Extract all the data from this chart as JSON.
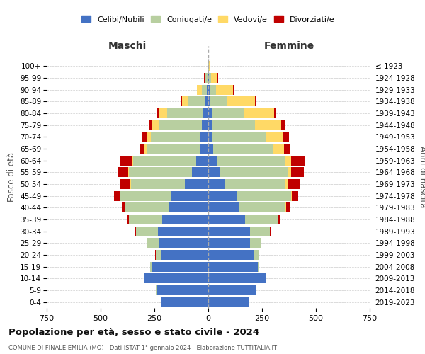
{
  "age_groups": [
    "0-4",
    "5-9",
    "10-14",
    "15-19",
    "20-24",
    "25-29",
    "30-34",
    "35-39",
    "40-44",
    "45-49",
    "50-54",
    "55-59",
    "60-64",
    "65-69",
    "70-74",
    "75-79",
    "80-84",
    "85-89",
    "90-94",
    "95-99",
    "100+"
  ],
  "birth_years": [
    "2019-2023",
    "2014-2018",
    "2009-2013",
    "2004-2008",
    "1999-2003",
    "1994-1998",
    "1989-1993",
    "1984-1988",
    "1979-1983",
    "1974-1978",
    "1969-1973",
    "1964-1968",
    "1959-1963",
    "1954-1958",
    "1949-1953",
    "1944-1948",
    "1939-1943",
    "1934-1938",
    "1929-1933",
    "1924-1928",
    "≤ 1923"
  ],
  "colors": {
    "celibe": "#4472c4",
    "coniugato": "#b8cfa0",
    "vedovo": "#ffd966",
    "divorziato": "#c00000"
  },
  "maschi": {
    "celibe": [
      220,
      240,
      295,
      260,
      220,
      230,
      235,
      215,
      185,
      170,
      110,
      75,
      55,
      35,
      35,
      30,
      25,
      12,
      6,
      4,
      2
    ],
    "coniugato": [
      2,
      3,
      5,
      10,
      25,
      55,
      100,
      155,
      200,
      240,
      250,
      295,
      295,
      250,
      230,
      200,
      165,
      80,
      25,
      8,
      2
    ],
    "vedovo": [
      0,
      0,
      0,
      0,
      0,
      0,
      0,
      0,
      0,
      1,
      2,
      2,
      5,
      10,
      20,
      30,
      40,
      30,
      20,
      5,
      0
    ],
    "divorziato": [
      0,
      0,
      0,
      0,
      1,
      2,
      5,
      8,
      15,
      25,
      50,
      45,
      55,
      25,
      20,
      15,
      8,
      5,
      3,
      2,
      0
    ]
  },
  "femmine": {
    "nubile": [
      190,
      220,
      265,
      230,
      215,
      195,
      195,
      170,
      145,
      130,
      80,
      55,
      40,
      22,
      20,
      18,
      15,
      8,
      5,
      3,
      1
    ],
    "coniugata": [
      1,
      2,
      3,
      8,
      20,
      50,
      90,
      155,
      215,
      255,
      280,
      315,
      320,
      280,
      250,
      200,
      150,
      80,
      30,
      10,
      2
    ],
    "vedova": [
      0,
      0,
      0,
      0,
      0,
      0,
      0,
      1,
      2,
      4,
      8,
      15,
      25,
      50,
      80,
      120,
      140,
      130,
      80,
      30,
      5
    ],
    "divorziata": [
      0,
      0,
      0,
      0,
      1,
      2,
      4,
      8,
      15,
      30,
      60,
      60,
      65,
      25,
      25,
      18,
      8,
      5,
      3,
      2,
      0
    ]
  },
  "xlim": 750,
  "title": "Popolazione per età, sesso e stato civile - 2024",
  "subtitle": "COMUNE DI FINALE EMILIA (MO) - Dati ISTAT 1° gennaio 2024 - Elaborazione TUTTITALIA.IT",
  "xlabel_maschi": "Maschi",
  "xlabel_femmine": "Femmine",
  "ylabel_left": "Fasce di età",
  "ylabel_right": "Anni di nascita",
  "legend_labels": [
    "Celibi/Nubili",
    "Coniugati/e",
    "Vedovi/e",
    "Divorziati/e"
  ],
  "bg_color": "#ffffff"
}
